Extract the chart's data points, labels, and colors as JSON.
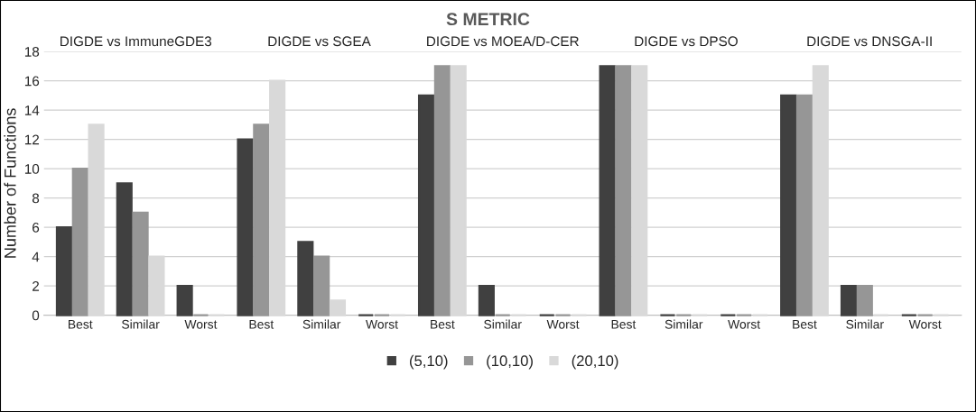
{
  "chart_data": {
    "type": "bar",
    "title": "S METRIC",
    "ylabel": "Number of Functions",
    "categories": [
      "Best",
      "Similar",
      "Worst",
      "Best",
      "Similar",
      "Worst",
      "Best",
      "Similar",
      "Worst",
      "Best",
      "Similar",
      "Worst",
      "Best",
      "Similar",
      "Worst"
    ],
    "series": [
      {
        "name": "(5,10)",
        "color": "#404040",
        "values": [
          6,
          9,
          2,
          12,
          5,
          0,
          15,
          2,
          0,
          17,
          0,
          0,
          15,
          2,
          0
        ]
      },
      {
        "name": "(10,10)",
        "color": "#969696",
        "values": [
          10,
          7,
          0,
          13,
          4,
          0,
          17,
          0,
          0,
          17,
          0,
          0,
          15,
          2,
          0
        ]
      },
      {
        "name": "(20,10)",
        "color": "#d9d9d9",
        "values": [
          13,
          4,
          0,
          16,
          1,
          0,
          17,
          0,
          0,
          17,
          0,
          0,
          17,
          0,
          0
        ]
      }
    ],
    "annotations": [
      "DIGDE vs ImmuneGDE3",
      "DIGDE vs SGEA",
      "DIGDE vs MOEA/D-CER",
      "DIGDE vs DPSO",
      "DIGDE vs DNSGA-II"
    ],
    "ylim": [
      0,
      18
    ],
    "yticks": [
      0,
      2,
      4,
      6,
      8,
      10,
      12,
      14,
      16,
      18
    ],
    "grid": "y",
    "legend": "bottom"
  }
}
